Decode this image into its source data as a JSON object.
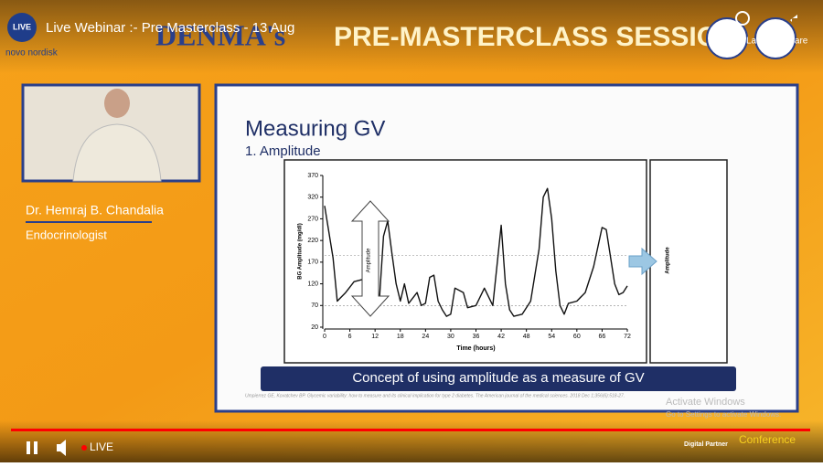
{
  "player": {
    "title": "Live Webinar :- Pre Masterclass - 13 Aug",
    "live_badge": "LIVE",
    "brand": "novo nordisk",
    "watch_later": "Watch Later",
    "share": "Share",
    "live_label": "LIVE"
  },
  "banner": {
    "left": "DENMA's",
    "right": "PRE-MASTERCLASS SESSION"
  },
  "speaker": {
    "name": "Dr. Hemraj B. Chandalia",
    "role": "Endocrinologist"
  },
  "slide": {
    "title": "Measuring GV",
    "subtitle": "1. Amplitude",
    "caption": "Concept of using amplitude as a measure of GV",
    "citation": "Umpierrez GE, Kovatchev BP. Glycemic variability: how to measure and its clinical implication for type 2 diabetes. The American journal of the medical sciences. 2018 Dec 1;356(6):518-27.",
    "chart": {
      "type": "line",
      "xlabel": "Time (hours)",
      "ylabel": "BG Amplitude (mg/dl)",
      "arrow_label": "Amplitude",
      "side_label": "Amplitude",
      "xlim": [
        0,
        72
      ],
      "ylim": [
        20,
        370
      ],
      "xticks": [
        0,
        6,
        12,
        18,
        24,
        30,
        36,
        42,
        48,
        54,
        60,
        66,
        72
      ],
      "yticks": [
        20,
        70,
        120,
        170,
        220,
        270,
        320,
        370
      ],
      "reference_lines": [
        70,
        185
      ],
      "x": [
        0,
        2,
        3,
        5,
        7,
        9,
        11,
        13,
        14,
        15,
        16,
        17,
        18,
        19,
        20,
        22,
        23,
        24,
        25,
        26,
        27,
        28,
        29,
        30,
        31,
        33,
        34,
        36,
        38,
        40,
        42,
        43,
        44,
        45,
        47,
        49,
        51,
        52,
        53,
        54,
        55,
        56,
        57,
        58,
        60,
        62,
        64,
        66,
        67,
        69,
        70,
        71,
        72
      ],
      "y": [
        300,
        180,
        80,
        100,
        125,
        130,
        75,
        80,
        230,
        265,
        190,
        120,
        80,
        120,
        75,
        100,
        70,
        75,
        135,
        140,
        80,
        60,
        45,
        50,
        110,
        100,
        65,
        70,
        110,
        70,
        255,
        120,
        60,
        45,
        50,
        80,
        200,
        320,
        340,
        270,
        150,
        70,
        50,
        75,
        80,
        100,
        160,
        250,
        245,
        120,
        95,
        100,
        115
      ]
    }
  },
  "watermark": {
    "line1": "Activate Windows",
    "line2": "Go to Settings to activate Windows."
  },
  "footer": {
    "digital_partner": "Digital Partner",
    "brand": "Conference"
  }
}
